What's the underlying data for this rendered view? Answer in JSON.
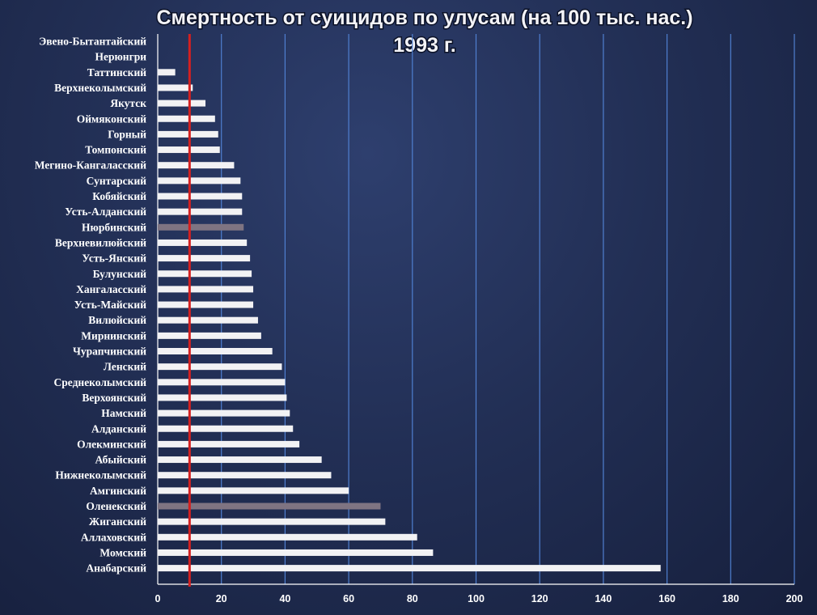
{
  "chart_data": {
    "type": "bar",
    "orientation": "horizontal",
    "title": "Смертность от суицидов по улусам (на 100 тыс. нас.)",
    "subtitle": "1993 г.",
    "xlim": [
      0,
      200
    ],
    "xticks": [
      0,
      20,
      40,
      60,
      80,
      100,
      120,
      140,
      160,
      180,
      200
    ],
    "grid": true,
    "reference_line_value": 10,
    "colors": {
      "bar": "#f2f2f4",
      "highlight_bar": "#7f7482",
      "reference_line": "#d42020",
      "grid": "#4f7fd0"
    },
    "highlighted": [
      "Нюрбинский",
      "Оленекский"
    ],
    "categories": [
      "Эвено-Бытантайский",
      "Нерюнгри",
      "Таттинский",
      "Верхнеколымский",
      "Якутск",
      "Оймяконский",
      "Горный",
      "Томпонский",
      "Мегино-Кангаласский",
      "Сунтарский",
      "Кобяйский",
      "Усть-Алданский",
      "Нюрбинский",
      "Верхневилюйский",
      "Усть-Янский",
      "Булунский",
      "Хангаласский",
      "Усть-Майский",
      "Вилюйский",
      "Мирнинский",
      "Чурапчинский",
      "Ленский",
      "Среднеколымский",
      "Верхоянский",
      "Намский",
      "Алданский",
      "Олекминский",
      "Абыйский",
      "Нижнеколымский",
      "Амгинский",
      "Оленекский",
      "Жиганский",
      "Аллаховский",
      "Момский",
      "Анабарский"
    ],
    "values": [
      0,
      0,
      5.5,
      11,
      15,
      18,
      19,
      19.5,
      24,
      26,
      26.5,
      26.5,
      27,
      28,
      29,
      29.5,
      30,
      30,
      31.5,
      32.5,
      36,
      39,
      40,
      40.5,
      41.5,
      42.5,
      44.5,
      51.5,
      54.5,
      60,
      70,
      71.5,
      81.5,
      86.5,
      158
    ]
  }
}
